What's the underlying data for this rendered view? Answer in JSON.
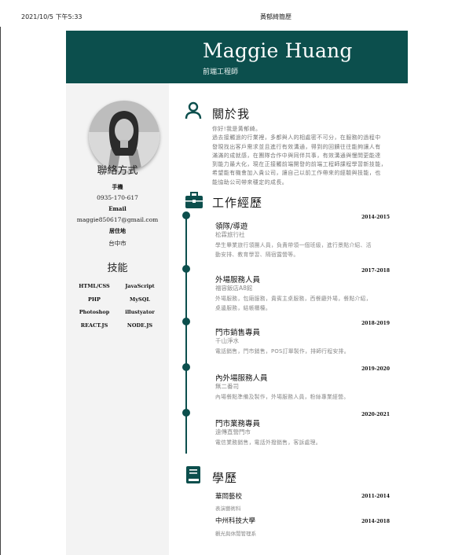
{
  "print_header": {
    "date": "2021/10/5 下午5:33",
    "title": "黃郁綺簡歷"
  },
  "header": {
    "name": "Maggie Huang",
    "role": "前端工程師"
  },
  "sidebar": {
    "contact_heading": "聯絡方式",
    "contact": [
      {
        "label": "手機",
        "value": "0935-170-617"
      },
      {
        "label": "Email",
        "value": "maggie850617@gmail.com"
      },
      {
        "label": "居住地",
        "value": "台中市"
      }
    ],
    "skills_heading": "技能",
    "skills": [
      "HTML/CSS",
      "JavaScript",
      "PHP",
      "MySQL",
      "Photoshop",
      "illustyator",
      "REACT.JS",
      "NODE.JS"
    ]
  },
  "about": {
    "icon": "person-icon",
    "title": "關於我",
    "lines": [
      "你好!我是黃郁綺。",
      "過去接觸過的行業裡，多都與人的相處密不可分，在服務的過程中",
      "發現找出客戶需求並且進行有效溝通，得到的回饋往往能夠讓人有",
      "滿滿的成就感，在團隊合作中與同伴共事，有效溝通與慢問更能達",
      "到能力最大化，現在正接觸前端開發的前端工程師課程學習新技能，",
      "希望能有機會加入貴公司，讓自己以前工作帶來的經驗與技能，也",
      "能協助公司帶來穩定的成長。"
    ]
  },
  "experience": {
    "icon": "briefcase-icon",
    "title": "工作經歷",
    "jobs": [
      {
        "title": "領隊/導遊",
        "company": "松霖旅行社",
        "years": "2014-2015",
        "desc": [
          "學生畢業旅行領團人員，負責帶領一個班級，進行景點介紹、活",
          "動安排、教育學習、隔宿露營等。"
        ]
      },
      {
        "title": "外場服務人員",
        "company": "福容飯店A8館",
        "years": "2017-2018",
        "desc": [
          "外場服務，包廂服務，貴賓主桌服務，西餐廳外場，餐點介紹，",
          "桌邊服務，結帳櫃檯。"
        ]
      },
      {
        "title": "門市銷售專員",
        "company": "千山淨水",
        "years": "2018-2019",
        "desc": [
          "電話銷售，門市銷售，POS訂單製作，排師行程安排。"
        ]
      },
      {
        "title": "內外場服務人員",
        "company": "無二番司",
        "years": "2019-2020",
        "desc": [
          "內場餐點準備及製作，外場服務人員，粉絲專業經營。"
        ]
      },
      {
        "title": "門市業務專員",
        "company": "遠傳直營門市",
        "years": "2020-2021",
        "desc": [
          "電信業務銷售，電話外撥銷售，客訴處理。"
        ]
      }
    ]
  },
  "education": {
    "icon": "book-icon",
    "title": "學歷",
    "items": [
      {
        "school": "華岡藝校",
        "dept": "表演藝術科",
        "years": "2011-2014"
      },
      {
        "school": "中州科技大學",
        "dept": "觀光與休閒管理系",
        "years": "2014-2018"
      }
    ]
  },
  "colors": {
    "accent": "#0c4f4d",
    "sidebar": "#f3f3f3",
    "muted_text": "#888888"
  }
}
